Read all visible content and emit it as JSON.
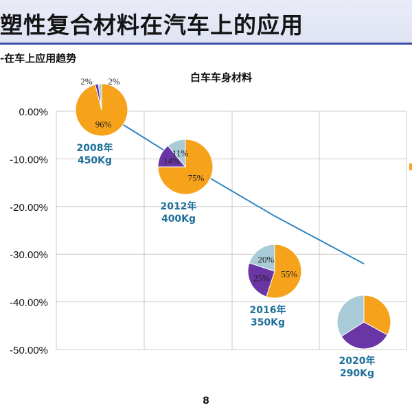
{
  "slide": {
    "title": "塑性复合材料在汽车上的应用",
    "section_label": "-在车上应用趋势",
    "page_number": "8"
  },
  "colors": {
    "orange": "#F7A21B",
    "purple": "#6A35A5",
    "lightblue": "#A9CBD7",
    "line": "#2E86C1",
    "label": "#1F6F9A",
    "grid": "#c8c8c8"
  },
  "chart_data": {
    "type": "line",
    "title": "白车车身材料",
    "ylim": [
      -50,
      0
    ],
    "yticks": [
      "0.00%",
      "-10.00%",
      "-20.00%",
      "-30.00%",
      "-40.00%",
      "-50.00%"
    ],
    "ytick_values": [
      0,
      -10,
      -20,
      -30,
      -40,
      -50
    ],
    "x": [
      2008,
      2012,
      2016,
      2020
    ],
    "y": [
      0,
      -11,
      -22,
      -32
    ],
    "points": [
      {
        "year_label": "2008年",
        "weight_label": "450Kg",
        "slices": [
          {
            "value": 96,
            "label": "96%",
            "color": "orange"
          },
          {
            "value": 2,
            "label": "2%",
            "color": "purple"
          },
          {
            "value": 2,
            "label": "2%",
            "color": "lightblue"
          }
        ]
      },
      {
        "year_label": "2012年",
        "weight_label": "400Kg",
        "slices": [
          {
            "value": 75,
            "label": "75%",
            "color": "orange"
          },
          {
            "value": 14,
            "label": "14%",
            "color": "purple"
          },
          {
            "value": 11,
            "label": "11%",
            "color": "lightblue"
          }
        ]
      },
      {
        "year_label": "2016年",
        "weight_label": "350Kg",
        "slices": [
          {
            "value": 55,
            "label": "55%",
            "color": "orange"
          },
          {
            "value": 25,
            "label": "25%",
            "color": "purple"
          },
          {
            "value": 20,
            "label": "20%",
            "color": "lightblue"
          }
        ]
      },
      {
        "year_label": "2020年",
        "weight_label": "290Kg",
        "slices": [
          {
            "value": 33,
            "label": "",
            "color": "orange"
          },
          {
            "value": 33,
            "label": "",
            "color": "purple"
          },
          {
            "value": 34,
            "label": "",
            "color": "lightblue"
          }
        ]
      }
    ]
  }
}
